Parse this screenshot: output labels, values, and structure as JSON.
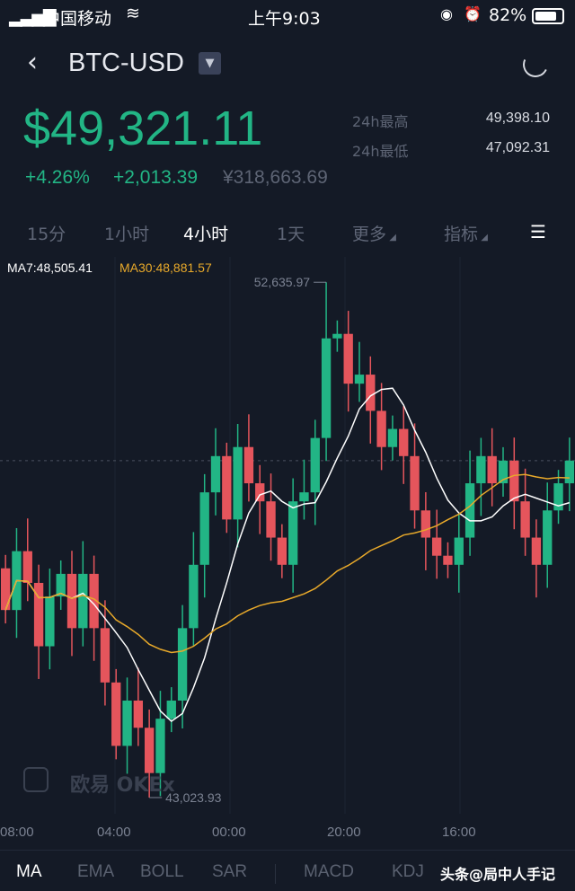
{
  "status_bar": {
    "carrier": "中国移动",
    "time": "上午9:03",
    "battery": "82%"
  },
  "header": {
    "pair": "BTC-USD"
  },
  "ticker": {
    "price": "$49,321.11",
    "change_pct": "+4.26%",
    "change_abs": "+2,013.39",
    "cny": "¥318,663.69",
    "high_label": "24h最高",
    "high": "49,398.10",
    "low_label": "24h最低",
    "low": "47,092.31"
  },
  "intervals": [
    {
      "label": "15分"
    },
    {
      "label": "1小时"
    },
    {
      "label": "4小时",
      "active": true
    },
    {
      "label": "1天"
    },
    {
      "label": "更多"
    },
    {
      "label": "指标"
    }
  ],
  "indicators_legend": {
    "ma7": "MA7:48,505.41",
    "ma30": "MA30:48,881.57"
  },
  "colors": {
    "up": "#22b585",
    "down": "#e5555c",
    "ma7": "#ffffff",
    "ma30": "#e8a92a",
    "bg": "#141a26"
  },
  "watermark": "欧易 OKEx",
  "chart_data": {
    "type": "candlestick",
    "ylim": [
      42722,
      53109
    ],
    "x_ticks": [
      "08:00",
      "04:00",
      "00:00",
      "20:00",
      "16:00"
    ],
    "first_open": 47300,
    "closes": [
      46522,
      47620,
      47028,
      45846,
      46775,
      47197,
      46184,
      47197,
      46184,
      45171,
      43988,
      44833,
      44326,
      43481,
      44495,
      44833,
      46184,
      47366,
      48717,
      49393,
      48211,
      49562,
      48886,
      48549,
      47873,
      47366,
      48549,
      48717,
      49731,
      51589,
      51673,
      50744,
      50913,
      50237,
      49562,
      49900,
      49393,
      48380,
      47873,
      47535,
      47366,
      47873,
      48886,
      49393,
      48886,
      49309,
      48549,
      47873,
      47366,
      48380,
      48886,
      49309
    ],
    "max_label": "52,635.97",
    "max_value": 52635.97,
    "max_index": 29,
    "min_label": "43,023.93",
    "min_value": 43023.93,
    "min_index": 13,
    "last_price": 49309
  },
  "bottom_tabs": [
    {
      "label": "MA",
      "active": true
    },
    {
      "label": "EMA"
    },
    {
      "label": "BOLL"
    },
    {
      "label": "SAR"
    },
    {
      "label": "MACD"
    },
    {
      "label": "KDJ"
    }
  ],
  "overlay_credit": "头条@局中人手记"
}
